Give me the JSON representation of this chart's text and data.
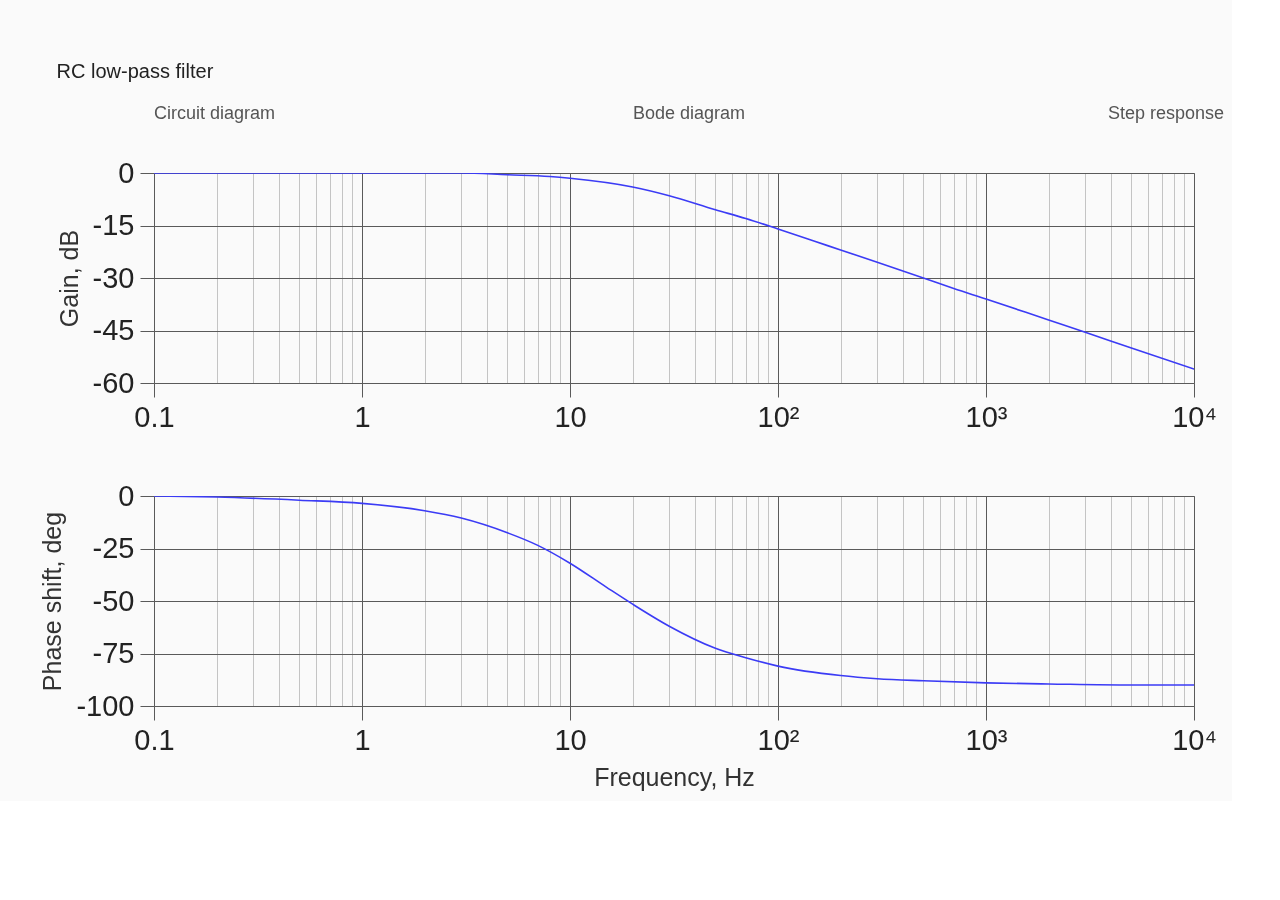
{
  "chart_data": [
    {
      "type": "line",
      "title": "RC low-pass filter",
      "annotations": [
        "Circuit diagram",
        "Bode diagram",
        "Step response"
      ],
      "ylabel": "Gain, dB",
      "x": [
        0.1,
        1,
        2,
        3,
        5,
        8,
        10,
        20,
        30,
        50,
        70,
        100,
        150,
        200,
        300,
        500,
        700,
        1000,
        2000,
        3000,
        5000,
        10000
      ],
      "series": [
        {
          "color": "#3b3bf5",
          "values": [
            0,
            0,
            0,
            0,
            -0.5,
            -1,
            -1.5,
            -4,
            -6.5,
            -10.5,
            -13,
            -16,
            -19.5,
            -22,
            -25.5,
            -30,
            -33,
            -36,
            -42,
            -45.5,
            -50,
            -56
          ]
        }
      ],
      "log": "x",
      "xlim": [
        0.1,
        10000
      ],
      "xticks": [
        0.1,
        {
          "value": 0.2,
          "label": null
        },
        {
          "value": 0.3,
          "label": null
        },
        {
          "value": 0.4,
          "label": null
        },
        {
          "value": 0.5,
          "label": null
        },
        {
          "value": 0.6,
          "label": null
        },
        {
          "value": 0.7,
          "label": null
        },
        {
          "value": 0.8,
          "label": null
        },
        {
          "value": 0.9,
          "label": null
        },
        1,
        {
          "value": 2,
          "label": null
        },
        {
          "value": 3,
          "label": null
        },
        {
          "value": 4,
          "label": null
        },
        {
          "value": 5,
          "label": null
        },
        {
          "value": 6,
          "label": null
        },
        {
          "value": 7,
          "label": null
        },
        {
          "value": 8,
          "label": null
        },
        {
          "value": 9,
          "label": null
        },
        10,
        {
          "value": 20,
          "label": null
        },
        {
          "value": 30,
          "label": null
        },
        {
          "value": 40,
          "label": null
        },
        {
          "value": 50,
          "label": null
        },
        {
          "value": 60,
          "label": null
        },
        {
          "value": 70,
          "label": null
        },
        {
          "value": 80,
          "label": null
        },
        {
          "value": 90,
          "label": null
        },
        {
          "value": 100,
          "label": "10²"
        },
        {
          "value": 200,
          "label": null
        },
        {
          "value": 300,
          "label": null
        },
        {
          "value": 400,
          "label": null
        },
        {
          "value": 500,
          "label": null
        },
        {
          "value": 600,
          "label": null
        },
        {
          "value": 700,
          "label": null
        },
        {
          "value": 800,
          "label": null
        },
        {
          "value": 900,
          "label": null
        },
        {
          "value": 1000,
          "label": "10³"
        },
        {
          "value": 2000,
          "label": null
        },
        {
          "value": 3000,
          "label": null
        },
        {
          "value": 4000,
          "label": null
        },
        {
          "value": 5000,
          "label": null
        },
        {
          "value": 6000,
          "label": null
        },
        {
          "value": 7000,
          "label": null
        },
        {
          "value": 8000,
          "label": null
        },
        {
          "value": 9000,
          "label": null
        },
        {
          "value": 10000,
          "label": "10⁴"
        }
      ],
      "ylim": [
        -60,
        0
      ],
      "yticks": [
        0,
        -15,
        -30,
        -45,
        -60
      ],
      "grid": true
    },
    {
      "type": "line",
      "xlabel": "Frequency, Hz",
      "ylabel": "Phase shift, deg",
      "x": [
        0.1,
        0.2,
        0.5,
        1,
        2,
        3,
        5,
        7,
        10,
        15,
        20,
        30,
        50,
        70,
        100,
        200,
        300,
        500,
        1000,
        2000,
        5000,
        10000
      ],
      "series": [
        {
          "color": "#3b3bf5",
          "values": [
            0,
            -0.5,
            -2,
            -3.5,
            -7,
            -10.5,
            -17.5,
            -23.5,
            -32,
            -43.5,
            -51.5,
            -62,
            -72.5,
            -77,
            -81,
            -85.5,
            -87,
            -88,
            -89,
            -89.5,
            -90,
            -90
          ]
        }
      ],
      "log": "x",
      "xlim": [
        0.1,
        10000
      ],
      "xticks": [
        0.1,
        {
          "value": 0.2,
          "label": null
        },
        {
          "value": 0.3,
          "label": null
        },
        {
          "value": 0.4,
          "label": null
        },
        {
          "value": 0.5,
          "label": null
        },
        {
          "value": 0.6,
          "label": null
        },
        {
          "value": 0.7,
          "label": null
        },
        {
          "value": 0.8,
          "label": null
        },
        {
          "value": 0.9,
          "label": null
        },
        1,
        {
          "value": 2,
          "label": null
        },
        {
          "value": 3,
          "label": null
        },
        {
          "value": 4,
          "label": null
        },
        {
          "value": 5,
          "label": null
        },
        {
          "value": 6,
          "label": null
        },
        {
          "value": 7,
          "label": null
        },
        {
          "value": 8,
          "label": null
        },
        {
          "value": 9,
          "label": null
        },
        10,
        {
          "value": 20,
          "label": null
        },
        {
          "value": 30,
          "label": null
        },
        {
          "value": 40,
          "label": null
        },
        {
          "value": 50,
          "label": null
        },
        {
          "value": 60,
          "label": null
        },
        {
          "value": 70,
          "label": null
        },
        {
          "value": 80,
          "label": null
        },
        {
          "value": 90,
          "label": null
        },
        {
          "value": 100,
          "label": "10²"
        },
        {
          "value": 200,
          "label": null
        },
        {
          "value": 300,
          "label": null
        },
        {
          "value": 400,
          "label": null
        },
        {
          "value": 500,
          "label": null
        },
        {
          "value": 600,
          "label": null
        },
        {
          "value": 700,
          "label": null
        },
        {
          "value": 800,
          "label": null
        },
        {
          "value": 900,
          "label": null
        },
        {
          "value": 1000,
          "label": "10³"
        },
        {
          "value": 2000,
          "label": null
        },
        {
          "value": 3000,
          "label": null
        },
        {
          "value": 4000,
          "label": null
        },
        {
          "value": 5000,
          "label": null
        },
        {
          "value": 6000,
          "label": null
        },
        {
          "value": 7000,
          "label": null
        },
        {
          "value": 8000,
          "label": null
        },
        {
          "value": 9000,
          "label": null
        },
        {
          "value": 10000,
          "label": "10⁴"
        }
      ],
      "ylim": [
        -100,
        0
      ],
      "yticks": [
        0,
        -25,
        -50,
        -75,
        -100
      ],
      "grid": true
    }
  ]
}
